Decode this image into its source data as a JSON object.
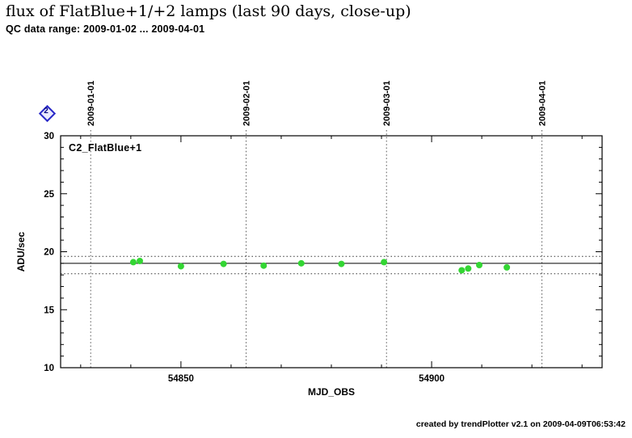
{
  "header": {
    "title": "flux of FlatBlue+1/+2 lamps (last 90 days, close-up)",
    "subtitle": "QC data range: 2009-01-02 ... 2009-04-01"
  },
  "badge": {
    "label": "2"
  },
  "footer": {
    "credit": "created by trendPlotter v2.1 on 2009-04-09T06:53:42"
  },
  "chart_data": {
    "type": "scatter",
    "series_label": "C2_FlatBlue+1",
    "xlabel": "MJD_OBS",
    "ylabel": "ADU/sec",
    "xlim": [
      54826,
      54934
    ],
    "ylim": [
      10,
      30
    ],
    "x_ticks": [
      54850,
      54900
    ],
    "y_ticks": [
      10,
      15,
      20,
      25,
      30
    ],
    "x_minor_step": 10,
    "y_minor_step": 1,
    "date_lines": [
      {
        "label": "2009-01-01",
        "mjd": 54832
      },
      {
        "label": "2009-02-01",
        "mjd": 54863
      },
      {
        "label": "2009-03-01",
        "mjd": 54891
      },
      {
        "label": "2009-04-01",
        "mjd": 54922
      }
    ],
    "reference_lines": {
      "mean": 19.0,
      "upper": 19.6,
      "lower": 18.1
    },
    "points": [
      {
        "x": 54840.5,
        "y": 19.1
      },
      {
        "x": 54841.8,
        "y": 19.2
      },
      {
        "x": 54850.0,
        "y": 18.75
      },
      {
        "x": 54858.5,
        "y": 18.95
      },
      {
        "x": 54866.5,
        "y": 18.8
      },
      {
        "x": 54874.0,
        "y": 19.0
      },
      {
        "x": 54882.0,
        "y": 18.95
      },
      {
        "x": 54890.5,
        "y": 19.1
      },
      {
        "x": 54906.0,
        "y": 18.4
      },
      {
        "x": 54907.3,
        "y": 18.55
      },
      {
        "x": 54909.5,
        "y": 18.85
      },
      {
        "x": 54915.0,
        "y": 18.65
      }
    ],
    "point_color": "#33d633",
    "axis_color": "#000000",
    "gridline_color": "#555555",
    "grid": false,
    "legend": "none"
  }
}
